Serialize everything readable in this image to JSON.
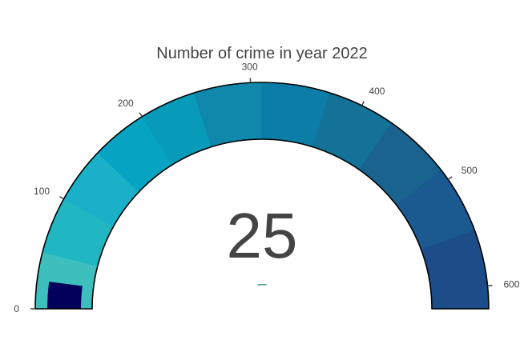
{
  "chart_data": {
    "type": "gauge",
    "title": "Number of crime in year 2022",
    "value": 25,
    "value_label": "25",
    "delta_label": "–",
    "axis_range": [
      0,
      620
    ],
    "ticks": [
      0,
      100,
      200,
      300,
      400,
      500,
      600
    ],
    "tick_labels": [
      "0",
      "100",
      "200",
      "300",
      "400",
      "500",
      "600"
    ],
    "steps": [
      {
        "range": [
          0,
          50
        ],
        "color": "#3cbfbd"
      },
      {
        "range": [
          50,
          100
        ],
        "color": "#20b7c3"
      },
      {
        "range": [
          100,
          150
        ],
        "color": "#19b0c8"
      },
      {
        "range": [
          150,
          200
        ],
        "color": "#06a4c2"
      },
      {
        "range": [
          200,
          250
        ],
        "color": "#079ab9"
      },
      {
        "range": [
          250,
          310
        ],
        "color": "#0f88ab"
      },
      {
        "range": [
          310,
          370
        ],
        "color": "#0b7da7"
      },
      {
        "range": [
          370,
          430
        ],
        "color": "#147299"
      },
      {
        "range": [
          430,
          490
        ],
        "color": "#1a638f"
      },
      {
        "range": [
          490,
          550
        ],
        "color": "#1b5991"
      },
      {
        "range": [
          550,
          620
        ],
        "color": "#1d4d89"
      }
    ],
    "bar_color": "#02005a",
    "delta_color": "#3d9970",
    "outline_color": "#000000"
  }
}
